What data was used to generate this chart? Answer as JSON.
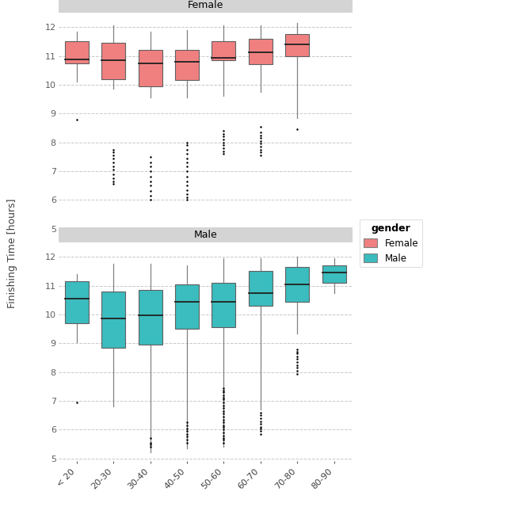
{
  "age_bands": [
    "< 20",
    "20-30",
    "30-40",
    "40-50",
    "50-60",
    "60-70",
    "70-80",
    "80-90"
  ],
  "female_boxes": {
    "< 20": {
      "q1": 10.75,
      "median": 10.88,
      "q3": 11.5,
      "whislo": 10.1,
      "whishi": 11.85,
      "fliers": [
        8.8
      ]
    },
    "20-30": {
      "q1": 10.2,
      "median": 10.85,
      "q3": 11.45,
      "whislo": 9.85,
      "whishi": 12.05,
      "fliers": [
        6.55,
        6.65,
        6.75,
        6.9,
        7.05,
        7.15,
        7.3,
        7.45,
        7.55,
        7.65,
        7.75
      ]
    },
    "30-40": {
      "q1": 9.95,
      "median": 10.73,
      "q3": 11.2,
      "whislo": 9.55,
      "whishi": 11.85,
      "fliers": [
        6.0,
        6.15,
        6.3,
        6.5,
        6.65,
        6.8,
        7.0,
        7.15,
        7.3,
        7.5
      ]
    },
    "40-50": {
      "q1": 10.15,
      "median": 10.8,
      "q3": 11.2,
      "whislo": 9.55,
      "whishi": 11.9,
      "fliers": [
        6.0,
        6.1,
        6.2,
        6.35,
        6.5,
        6.65,
        6.8,
        7.0,
        7.15,
        7.3,
        7.45,
        7.6,
        7.75,
        7.9,
        8.0
      ]
    },
    "50-60": {
      "q1": 10.85,
      "median": 10.92,
      "q3": 11.5,
      "whislo": 9.6,
      "whishi": 12.05,
      "fliers": [
        7.6,
        7.7,
        7.8,
        7.9,
        8.0,
        8.1,
        8.2,
        8.3,
        8.4
      ]
    },
    "60-70": {
      "q1": 10.7,
      "median": 11.12,
      "q3": 11.6,
      "whislo": 9.75,
      "whishi": 12.05,
      "fliers": [
        7.55,
        7.65,
        7.75,
        7.85,
        7.95,
        8.05,
        8.15,
        8.25,
        8.35,
        8.55
      ]
    },
    "70-80": {
      "q1": 11.0,
      "median": 11.4,
      "q3": 11.75,
      "whislo": 8.85,
      "whishi": 12.15,
      "fliers": [
        8.45
      ]
    },
    "80-90": {
      "q1": null,
      "median": null,
      "q3": null,
      "whislo": null,
      "whishi": null,
      "fliers": []
    }
  },
  "male_boxes": {
    "< 20": {
      "q1": 9.7,
      "median": 10.55,
      "q3": 11.15,
      "whislo": 9.05,
      "whishi": 11.4,
      "fliers": [
        6.95
      ]
    },
    "20-30": {
      "q1": 8.85,
      "median": 9.85,
      "q3": 10.8,
      "whislo": 6.8,
      "whishi": 11.75,
      "fliers": []
    },
    "30-40": {
      "q1": 8.95,
      "median": 9.98,
      "q3": 10.85,
      "whislo": 5.2,
      "whishi": 11.75,
      "fliers": [
        5.4,
        5.5,
        5.55,
        5.7
      ]
    },
    "40-50": {
      "q1": 9.5,
      "median": 10.45,
      "q3": 11.05,
      "whislo": 5.35,
      "whishi": 11.7,
      "fliers": [
        5.55,
        5.65,
        5.75,
        5.85,
        5.95,
        6.05,
        6.15,
        6.25
      ]
    },
    "50-60": {
      "q1": 9.55,
      "median": 10.45,
      "q3": 11.1,
      "whislo": 5.4,
      "whishi": 11.95,
      "fliers": [
        5.55,
        5.65,
        5.7,
        5.8,
        5.9,
        6.0,
        6.1,
        6.15,
        6.25,
        6.35,
        6.45,
        6.55,
        6.65,
        6.75,
        6.85,
        6.95,
        7.05,
        7.1,
        7.2,
        7.3,
        7.35,
        7.45
      ]
    },
    "60-70": {
      "q1": 10.3,
      "median": 10.75,
      "q3": 11.5,
      "whislo": 6.7,
      "whishi": 11.95,
      "fliers": [
        5.85,
        5.95,
        6.05,
        6.1,
        6.2,
        6.3,
        6.4,
        6.5,
        6.6
      ]
    },
    "70-80": {
      "q1": 10.45,
      "median": 11.05,
      "q3": 11.65,
      "whislo": 9.35,
      "whishi": 12.0,
      "fliers": [
        7.95,
        8.05,
        8.15,
        8.25,
        8.35,
        8.45,
        8.55,
        8.65,
        8.7,
        8.8
      ]
    },
    "80-90": {
      "q1": 11.1,
      "median": 11.45,
      "q3": 11.7,
      "whislo": 10.75,
      "whishi": 11.95,
      "fliers": []
    }
  },
  "female_color": "#F08080",
  "male_color": "#3BBCBE",
  "panel_bg": "#FFFFFF",
  "strip_bg": "#D4D4D4",
  "grid_color": "#C8C8C8",
  "ylabel": "Finishing Time [hours]",
  "ylim": [
    4.9,
    12.5
  ],
  "yticks": [
    5,
    6,
    7,
    8,
    9,
    10,
    11,
    12
  ],
  "legend_title": "gender",
  "legend_labels": [
    "Female",
    "Male"
  ]
}
